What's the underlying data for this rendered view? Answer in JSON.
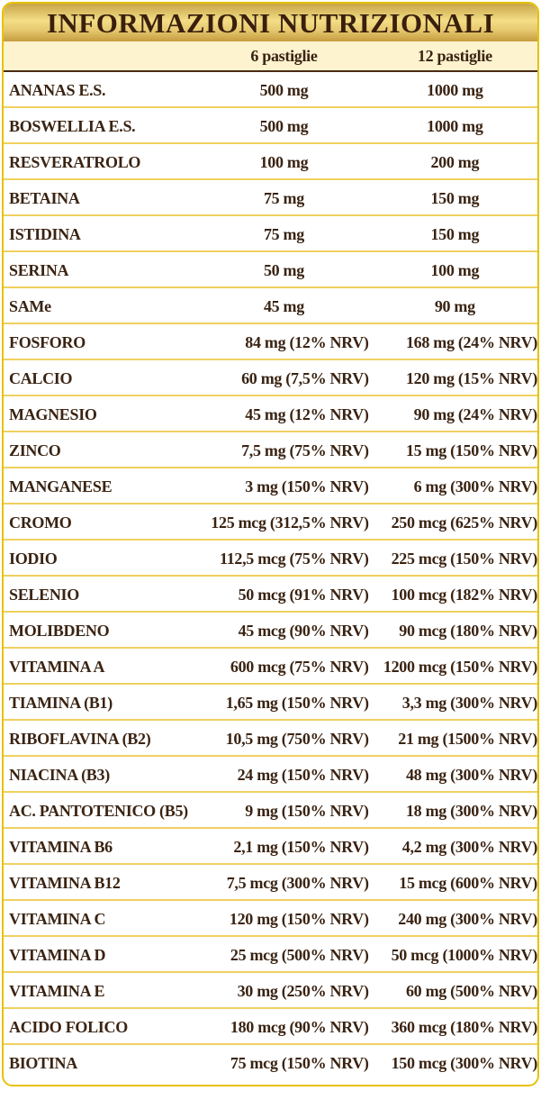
{
  "title": "INFORMAZIONI NUTRIZIONALI",
  "columns": [
    "",
    "6 pastiglie",
    "12 pastiglie"
  ],
  "rows": [
    [
      "ANANAS E.S.",
      "500 mg",
      "1000 mg"
    ],
    [
      "BOSWELLIA E.S.",
      "500 mg",
      "1000 mg"
    ],
    [
      "RESVERATROLO",
      "100 mg",
      "200 mg"
    ],
    [
      "BETAINA",
      "75 mg",
      "150 mg"
    ],
    [
      "ISTIDINA",
      "75 mg",
      "150 mg"
    ],
    [
      "SERINA",
      "50 mg",
      "100 mg"
    ],
    [
      "SAMe",
      "45 mg",
      "90 mg"
    ],
    [
      "FOSFORO",
      "84 mg (12% NRV)",
      "168 mg (24% NRV)"
    ],
    [
      "CALCIO",
      "60 mg (7,5% NRV)",
      "120 mg (15% NRV)"
    ],
    [
      "MAGNESIO",
      "45 mg (12% NRV)",
      "90 mg (24% NRV)"
    ],
    [
      "ZINCO",
      "7,5 mg (75% NRV)",
      "15 mg (150% NRV)"
    ],
    [
      "MANGANESE",
      "3 mg (150% NRV)",
      "6 mg (300% NRV)"
    ],
    [
      "CROMO",
      "125 mcg (312,5% NRV)",
      "250 mcg (625% NRV)"
    ],
    [
      "IODIO",
      "112,5 mcg (75% NRV)",
      "225 mcg (150% NRV)"
    ],
    [
      "SELENIO",
      "50 mcg (91% NRV)",
      "100 mcg (182% NRV)"
    ],
    [
      "MOLIBDENO",
      "45 mcg (90% NRV)",
      "90 mcg (180% NRV)"
    ],
    [
      "VITAMINA A",
      "600 mcg (75% NRV)",
      "1200 mcg (150% NRV)"
    ],
    [
      "TIAMINA (B1)",
      "1,65 mg (150% NRV)",
      "3,3 mg (300% NRV)"
    ],
    [
      "RIBOFLAVINA (B2)",
      "10,5 mg (750% NRV)",
      "21 mg (1500% NRV)"
    ],
    [
      "NIACINA (B3)",
      "24 mg (150% NRV)",
      "48 mg (300% NRV)"
    ],
    [
      "AC. PANTOTENICO (B5)",
      "9 mg (150% NRV)",
      "18 mg (300% NRV)"
    ],
    [
      "VITAMINA B6",
      "2,1 mg (150% NRV)",
      "4,2 mg (300% NRV)"
    ],
    [
      "VITAMINA B12",
      "7,5 mcg (300% NRV)",
      "15 mcg (600% NRV)"
    ],
    [
      "VITAMINA C",
      "120 mg (150% NRV)",
      "240 mg (300% NRV)"
    ],
    [
      "VITAMINA D",
      "25 mcg (500% NRV)",
      "50 mcg (1000% NRV)"
    ],
    [
      "VITAMINA E",
      "30 mg (250% NRV)",
      "60 mg (500% NRV)"
    ],
    [
      "ACIDO FOLICO",
      "180 mcg (90% NRV)",
      "360 mcg (180% NRV)"
    ],
    [
      "BIOTINA",
      "75 mcg (150% NRV)",
      "150 mcg (300% NRV)"
    ]
  ]
}
